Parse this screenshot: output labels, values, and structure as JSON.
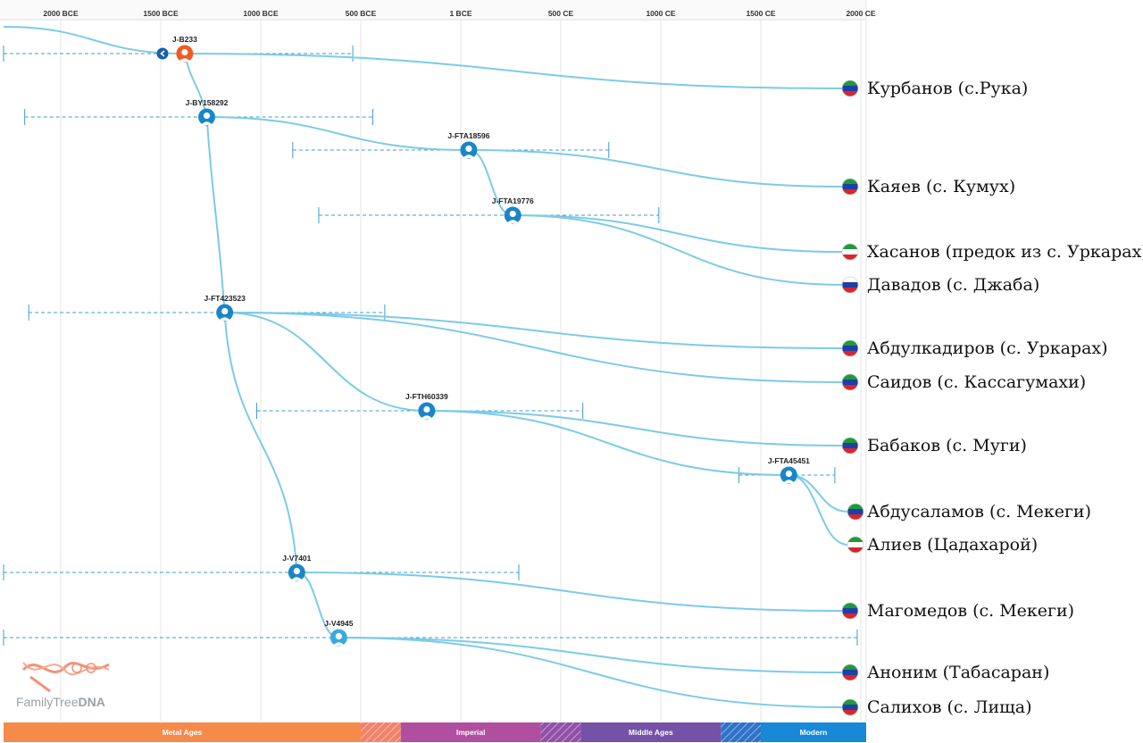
{
  "axis": {
    "ticks": [
      {
        "label": "2000 BCE",
        "year": -2000
      },
      {
        "label": "1500 BCE",
        "year": -1500
      },
      {
        "label": "1000 BCE",
        "year": -1000
      },
      {
        "label": "500 BCE",
        "year": -500
      },
      {
        "label": "1 BCE",
        "year": 0
      },
      {
        "label": "500 CE",
        "year": 500
      },
      {
        "label": "1000 CE",
        "year": 1000
      },
      {
        "label": "1500 CE",
        "year": 1500
      },
      {
        "label": "2000 CE",
        "year": 2000
      }
    ]
  },
  "eras": [
    {
      "label": "Metal Ages",
      "from": -2300,
      "to": -500,
      "color": "#f58a4b"
    },
    {
      "label": "",
      "from": -500,
      "to": -300,
      "color": "#f0836b",
      "hatched": true
    },
    {
      "label": "Imperial",
      "from": -300,
      "to": 400,
      "color": "#b04ea0"
    },
    {
      "label": "",
      "from": 400,
      "to": 600,
      "color": "#9250a8",
      "hatched": true
    },
    {
      "label": "Middle Ages",
      "from": 600,
      "to": 1300,
      "color": "#7352a8"
    },
    {
      "label": "",
      "from": 1300,
      "to": 1500,
      "color": "#2e73c8",
      "hatched": true
    },
    {
      "label": "Modern",
      "from": 1500,
      "to": 2050,
      "color": "#1789d6"
    }
  ],
  "nodes": [
    {
      "id": "J-B233",
      "year": -1380,
      "ci": [
        -2300,
        -540
      ],
      "color": "#f05a24",
      "parent": null
    },
    {
      "id": "J-BY158292",
      "year": -1270,
      "ci": [
        -2180,
        -440
      ],
      "color": "#1a86c8",
      "parent": "J-B233"
    },
    {
      "id": "J-FTA18596",
      "year": 40,
      "ci": [
        -840,
        740
      ],
      "color": "#1a86c8",
      "parent": "J-BY158292"
    },
    {
      "id": "J-FTA19776",
      "year": 260,
      "ci": [
        -710,
        990
      ],
      "color": "#1a86c8",
      "parent": "J-FTA18596"
    },
    {
      "id": "J-FT423523",
      "year": -1180,
      "ci": [
        -2160,
        -380
      ],
      "color": "#1a86c8",
      "parent": "J-BY158292"
    },
    {
      "id": "J-FTH60339",
      "year": -170,
      "ci": [
        -1020,
        610
      ],
      "color": "#1a86c8",
      "parent": "J-FT423523"
    },
    {
      "id": "J-FTA45451",
      "year": 1640,
      "ci": [
        1390,
        1870
      ],
      "color": "#1a86c8",
      "parent": "J-FTH60339"
    },
    {
      "id": "J-V7401",
      "year": -820,
      "ci": [
        -2300,
        290
      ],
      "color": "#1a86c8",
      "parent": "J-FT423523"
    },
    {
      "id": "J-V4945",
      "year": -610,
      "ci": [
        -2300,
        2090
      ],
      "color": "#3aa9dc",
      "parent": "J-V7401"
    }
  ],
  "descendants": [
    {
      "name": "Курбанов (с.Рука)",
      "parent": "J-B233",
      "flag": "dagestan"
    },
    {
      "name": "Каяев (с. Кумух)",
      "parent": "J-FTA18596",
      "flag": "dagestan"
    },
    {
      "name": "Хасанов (предок из с. Уркарах)",
      "parent": "J-FTA19776",
      "flag": "chechnya"
    },
    {
      "name": "Давадов (с. Джаба)",
      "parent": "J-FTA19776",
      "flag": "russia"
    },
    {
      "name": "Абдулкадиров (с. Уркарах)",
      "parent": "J-FT423523",
      "flag": "dagestan"
    },
    {
      "name": "Саидов (с. Кассагумахи)",
      "parent": "J-FT423523",
      "flag": "dagestan"
    },
    {
      "name": "Бабаков (с. Муги)",
      "parent": "J-FTH60339",
      "flag": "dagestan"
    },
    {
      "name": "Абдусаламов (с. Мекеги)",
      "parent": "J-FTA45451",
      "flag": "dagestan"
    },
    {
      "name": "Алиев (Цадахарой)",
      "parent": "J-FTA45451",
      "flag": "chechnya"
    },
    {
      "name": "Магомедов (с. Мекеги)",
      "parent": "J-V7401",
      "flag": "dagestan"
    },
    {
      "name": "Аноним (Табасаран)",
      "parent": "J-V4945",
      "flag": "dagestan"
    },
    {
      "name": "Салихов (с. Лища)",
      "parent": "J-V4945",
      "flag": "dagestan"
    }
  ],
  "flags": {
    "dagestan": [
      "#1f9a3a",
      "#1e3fa8",
      "#d8262b"
    ],
    "russia": [
      "#ffffff",
      "#1e3fa8",
      "#d8262b"
    ],
    "chechnya": [
      "#1f9a3a",
      "#ffffff",
      "#d8262b"
    ]
  },
  "colors": {
    "link": "#7ccbe6",
    "ci": "#3d9ccc",
    "grid": "#e6e6e6"
  },
  "logo": {
    "prefix": "FamilyTree",
    "suffix": "DNA"
  },
  "nav_icon": "chevron-left-icon"
}
